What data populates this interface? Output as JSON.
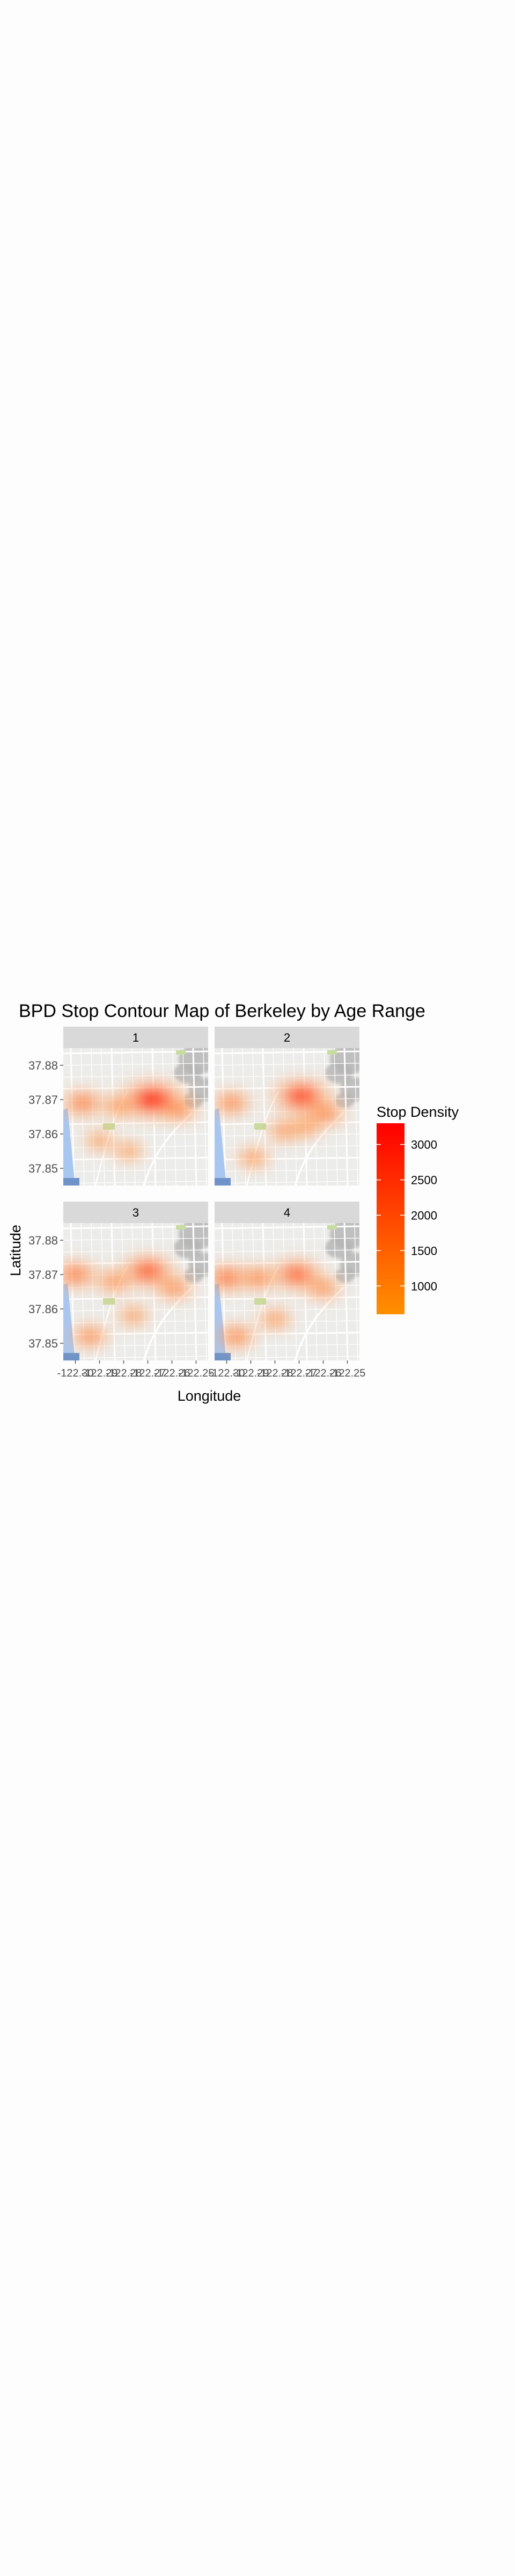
{
  "chart_data": {
    "type": "heatmap",
    "title": "BPD Stop Contour Map of Berkeley by Age Range",
    "xlabel": "Longitude",
    "ylabel": "Latitude",
    "xlim": [
      -122.305,
      -122.245
    ],
    "ylim": [
      37.845,
      37.885
    ],
    "x_ticks": [
      -122.3,
      -122.29,
      -122.28,
      -122.27,
      -122.26,
      -122.25
    ],
    "x_tick_labels": [
      "-122.30",
      "-122.29",
      "-122.28",
      "-122.27",
      "-122.26",
      "-122.25"
    ],
    "y_ticks": [
      37.85,
      37.86,
      37.87,
      37.88
    ],
    "y_tick_labels": [
      "37.85",
      "37.86",
      "37.87",
      "37.88"
    ],
    "facets": [
      "1",
      "2",
      "3",
      "4"
    ],
    "legend": {
      "title": "Stop Density",
      "placement": "right",
      "range": [
        600,
        3300
      ],
      "ticks": [
        1000,
        1500,
        2000,
        2500,
        3000
      ],
      "tick_labels": [
        "1000",
        "1500",
        "2000",
        "2500",
        "3000"
      ],
      "color_low": "#ff9000",
      "color_high": "#ff0000"
    },
    "hotspots": [
      [
        {
          "x": -122.297,
          "y": 37.869,
          "density": 1500
        },
        {
          "x": -122.268,
          "y": 37.87,
          "density": 3200
        },
        {
          "x": -122.257,
          "y": 37.867,
          "density": 1200
        },
        {
          "x": -122.282,
          "y": 37.868,
          "density": 1000
        },
        {
          "x": -122.29,
          "y": 37.858,
          "density": 700
        },
        {
          "x": -122.278,
          "y": 37.855,
          "density": 700
        }
      ],
      [
        {
          "x": -122.298,
          "y": 37.869,
          "density": 1300
        },
        {
          "x": -122.269,
          "y": 37.871,
          "density": 2700
        },
        {
          "x": -122.259,
          "y": 37.866,
          "density": 1300
        },
        {
          "x": -122.276,
          "y": 37.861,
          "density": 1000
        },
        {
          "x": -122.289,
          "y": 37.853,
          "density": 900
        },
        {
          "x": -122.267,
          "y": 37.862,
          "density": 800
        }
      ],
      [
        {
          "x": -122.3,
          "y": 37.87,
          "density": 1600
        },
        {
          "x": -122.27,
          "y": 37.871,
          "density": 2300
        },
        {
          "x": -122.259,
          "y": 37.866,
          "density": 1200
        },
        {
          "x": -122.294,
          "y": 37.852,
          "density": 1200
        },
        {
          "x": -122.284,
          "y": 37.868,
          "density": 1100
        },
        {
          "x": -122.276,
          "y": 37.858,
          "density": 800
        }
      ],
      [
        {
          "x": -122.3,
          "y": 37.869,
          "density": 1700
        },
        {
          "x": -122.271,
          "y": 37.87,
          "density": 2100
        },
        {
          "x": -122.287,
          "y": 37.869,
          "density": 1300
        },
        {
          "x": -122.296,
          "y": 37.852,
          "density": 1300
        },
        {
          "x": -122.26,
          "y": 37.866,
          "density": 1100
        },
        {
          "x": -122.28,
          "y": 37.857,
          "density": 900
        }
      ]
    ]
  },
  "colors": {
    "map_bg": "#ececea",
    "road": "#ffffff",
    "water": "#a8c7f0",
    "park": "#c8dca0",
    "hills": "#b4b4b4",
    "strip": "#d9d9d9"
  }
}
